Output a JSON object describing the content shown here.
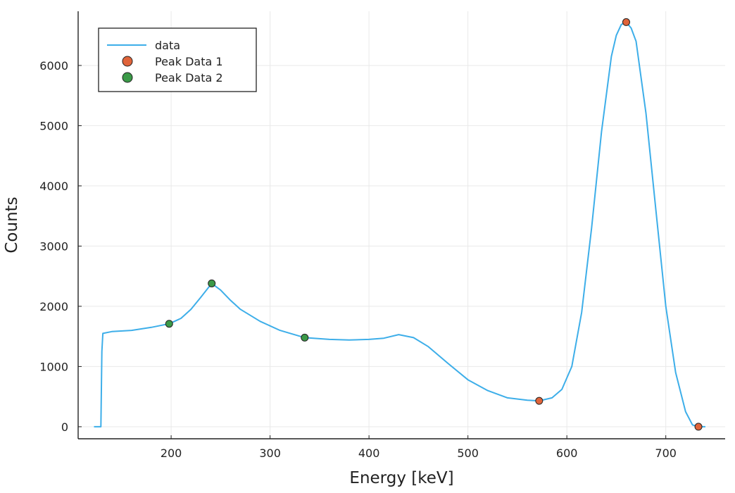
{
  "chart_data": {
    "type": "line",
    "title": "",
    "xlabel": "Energy [keV]",
    "ylabel": "Counts",
    "xlim": [
      106,
      760
    ],
    "ylim": [
      -200,
      6900
    ],
    "xticks": [
      200,
      300,
      400,
      500,
      600,
      700
    ],
    "yticks": [
      0,
      1000,
      2000,
      3000,
      4000,
      5000,
      6000
    ],
    "grid": true,
    "legend_position": "top-left",
    "colors": {
      "data": "#3daee9",
      "peak1": "#e0643a",
      "peak2": "#3b9a48"
    },
    "series": [
      {
        "name": "data",
        "kind": "line",
        "x": [
          122,
          129,
          130,
          131,
          140,
          160,
          180,
          198,
          210,
          220,
          230,
          241,
          250,
          260,
          270,
          290,
          310,
          335,
          360,
          380,
          400,
          415,
          430,
          445,
          460,
          480,
          500,
          520,
          540,
          560,
          572,
          585,
          595,
          605,
          615,
          625,
          635,
          645,
          650,
          655,
          660,
          665,
          670,
          680,
          690,
          700,
          710,
          720,
          727,
          733,
          740
        ],
        "y": [
          0,
          0,
          1250,
          1550,
          1580,
          1600,
          1650,
          1710,
          1800,
          1950,
          2150,
          2380,
          2270,
          2100,
          1950,
          1750,
          1600,
          1480,
          1450,
          1440,
          1450,
          1470,
          1530,
          1480,
          1330,
          1050,
          780,
          600,
          480,
          440,
          430,
          480,
          620,
          1000,
          1900,
          3300,
          4900,
          6150,
          6500,
          6680,
          6720,
          6620,
          6400,
          5200,
          3600,
          2000,
          900,
          250,
          30,
          0,
          0
        ]
      },
      {
        "name": "Peak Data 1",
        "kind": "scatter",
        "x": [
          572,
          660,
          733
        ],
        "y": [
          430,
          6720,
          0
        ]
      },
      {
        "name": "Peak Data 2",
        "kind": "scatter",
        "x": [
          198,
          241,
          335
        ],
        "y": [
          1710,
          2380,
          1480
        ]
      }
    ]
  }
}
